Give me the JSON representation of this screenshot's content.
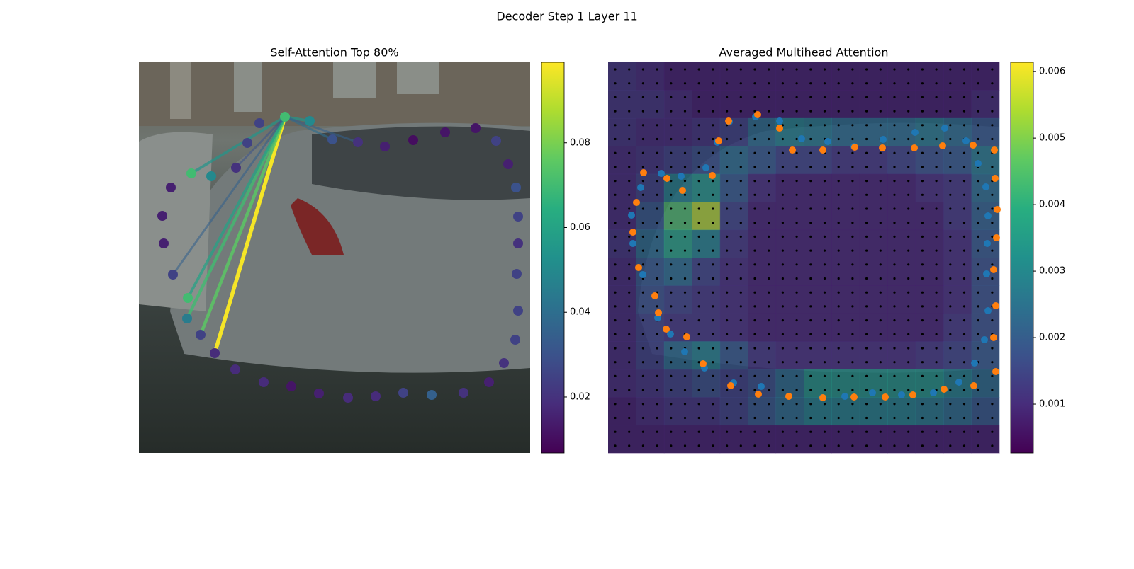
{
  "title": "Decoder Step 1 Layer 11",
  "chart_data": [
    {
      "type": "attention-graph",
      "title": "Self-Attention Top 80%",
      "xlim": [
        0,
        552
      ],
      "ylim": [
        552,
        0
      ],
      "x": [
        87,
        68,
        69,
        48,
        35,
        33,
        45,
        74,
        102,
        137,
        153,
        170,
        206,
        241,
        273,
        309,
        347,
        387,
        432,
        475,
        504,
        521,
        532,
        535,
        535,
        533,
        535,
        531,
        515,
        494,
        458,
        413,
        373,
        334,
        295,
        254,
        215,
        176,
        136,
        107
      ],
      "y": [
        167,
        190,
        219,
        252,
        296,
        335,
        375,
        395,
        391,
        403,
        438,
        466,
        475,
        469,
        443,
        439,
        433,
        442,
        453,
        459,
        441,
        408,
        375,
        334,
        296,
        253,
        201,
        160,
        127,
        100,
        85,
        82,
        85,
        80,
        78,
        84,
        94,
        100,
        118,
        141
      ],
      "values": [
        0.025,
        0.045,
        0.07,
        0.025,
        0.015,
        0.015,
        0.015,
        0.07,
        0.05,
        0.02,
        0.025,
        0.025,
        0.07,
        0.05,
        0.03,
        0.02,
        0.015,
        0.01,
        0.012,
        0.012,
        0.025,
        0.015,
        0.03,
        0.025,
        0.02,
        0.025,
        0.025,
        0.025,
        0.02,
        0.015,
        0.02,
        0.035,
        0.025,
        0.018,
        0.018,
        0.015,
        0.012,
        0.018,
        0.018,
        0.018
      ],
      "source": 12,
      "edges": {
        "targets": [
          39,
          0,
          1,
          2,
          3,
          7,
          13,
          14,
          15,
          9
        ],
        "values": [
          0.098,
          0.075,
          0.07,
          0.06,
          0.035,
          0.055,
          0.055,
          0.04,
          0.035,
          0.03
        ]
      },
      "clim": [
        0.0068,
        0.099
      ],
      "cticks": [
        0.02,
        0.04,
        0.06,
        0.08
      ]
    },
    {
      "type": "heatmap",
      "title": "Averaged Multihead Attention",
      "xlim": [
        0,
        552
      ],
      "ylim": [
        552,
        0
      ],
      "values": [
        [
          0.0012,
          0.001,
          0.0008,
          0.0008,
          0.0008,
          0.0008,
          0.0008,
          0.0008,
          0.0008,
          0.0008,
          0.0008,
          0.0008,
          0.0008,
          0.0008
        ],
        [
          0.0012,
          0.0012,
          0.001,
          0.0008,
          0.0008,
          0.0008,
          0.0008,
          0.0008,
          0.0008,
          0.0008,
          0.0008,
          0.0008,
          0.0008,
          0.001
        ],
        [
          0.0012,
          0.001,
          0.001,
          0.0012,
          0.0015,
          0.0025,
          0.003,
          0.0028,
          0.0025,
          0.0025,
          0.0025,
          0.0028,
          0.0025,
          0.002
        ],
        [
          0.001,
          0.0012,
          0.0015,
          0.0018,
          0.0025,
          0.002,
          0.0015,
          0.0015,
          0.0012,
          0.0012,
          0.0015,
          0.0018,
          0.002,
          0.0028
        ],
        [
          0.001,
          0.0015,
          0.003,
          0.0035,
          0.002,
          0.001,
          0.0008,
          0.0008,
          0.0008,
          0.0008,
          0.0008,
          0.001,
          0.0012,
          0.0025
        ],
        [
          0.001,
          0.002,
          0.0045,
          0.0055,
          0.0015,
          0.0008,
          0.0008,
          0.0008,
          0.0008,
          0.0008,
          0.0008,
          0.0008,
          0.0012,
          0.0022
        ],
        [
          0.0012,
          0.0025,
          0.0038,
          0.003,
          0.0012,
          0.0008,
          0.0008,
          0.0008,
          0.0008,
          0.0008,
          0.0008,
          0.0008,
          0.001,
          0.002
        ],
        [
          0.001,
          0.002,
          0.0025,
          0.0015,
          0.001,
          0.0008,
          0.0008,
          0.0008,
          0.0008,
          0.0008,
          0.0008,
          0.0008,
          0.001,
          0.0018
        ],
        [
          0.001,
          0.0018,
          0.0015,
          0.0012,
          0.001,
          0.0008,
          0.0008,
          0.0008,
          0.0008,
          0.0008,
          0.0008,
          0.0008,
          0.001,
          0.0018
        ],
        [
          0.001,
          0.0015,
          0.0012,
          0.0012,
          0.001,
          0.0008,
          0.0008,
          0.0008,
          0.0008,
          0.0008,
          0.0008,
          0.0008,
          0.0012,
          0.0018
        ],
        [
          0.001,
          0.0015,
          0.0025,
          0.003,
          0.002,
          0.0012,
          0.001,
          0.001,
          0.001,
          0.001,
          0.001,
          0.0012,
          0.0015,
          0.002
        ],
        [
          0.001,
          0.0012,
          0.0015,
          0.0018,
          0.0015,
          0.0018,
          0.0025,
          0.0035,
          0.0035,
          0.0035,
          0.0035,
          0.0035,
          0.003,
          0.0025
        ],
        [
          0.0008,
          0.001,
          0.0012,
          0.0012,
          0.0015,
          0.002,
          0.0025,
          0.003,
          0.003,
          0.003,
          0.003,
          0.0028,
          0.0025,
          0.002
        ],
        [
          0.0008,
          0.0008,
          0.0008,
          0.0008,
          0.0008,
          0.0008,
          0.0008,
          0.0008,
          0.0008,
          0.0008,
          0.0008,
          0.0008,
          0.0008,
          0.0008
        ]
      ],
      "clim": [
        0.000266,
        0.00614
      ],
      "cticks": [
        0.001,
        0.002,
        0.003,
        0.004,
        0.005,
        0.006
      ],
      "point_sets": [
        {
          "color": "#1f77b4",
          "x": [
            177,
            216,
            136,
            108,
            88,
            70,
            49,
            35,
            33,
            46,
            75,
            103,
            138,
            154,
            171,
            208,
            242,
            273,
            310,
            347,
            388,
            433,
            475,
            505,
            522,
            533,
            536,
            535,
            534,
            536,
            531,
            517,
            495,
            459,
            414,
            373,
            334,
            302,
            255
          ],
          "y": [
            99,
            94,
            120,
            143,
            168,
            191,
            252,
            296,
            336,
            375,
            395,
            391,
            403,
            439,
            468,
            475,
            469,
            444,
            440,
            433,
            443,
            453,
            459,
            441,
            409,
            376,
            335,
            296,
            253,
            201,
            160,
            127,
            100,
            85,
            82,
            85,
            80,
            78,
            80
          ]
        },
        {
          "color": "#ff7f0e",
          "x": [
            173,
            212,
            255,
            303,
            347,
            391,
            430,
            474,
            516,
            547,
            544,
            547,
            544,
            548,
            549,
            546,
            545,
            515,
            472,
            432,
            387,
            348,
            303,
            260,
            242,
            211,
            170,
            156,
            147,
            105,
            83,
            50,
            40,
            35,
            43,
            66,
            71,
            82,
            111,
            134
          ],
          "y": [
            95,
            83,
            80,
            78,
            79,
            79,
            82,
            90,
            95,
            115,
            163,
            208,
            259,
            304,
            344,
            388,
            428,
            435,
            434,
            431,
            431,
            432,
            428,
            428,
            459,
            478,
            469,
            441,
            392,
            371,
            388,
            396,
            354,
            312,
            262,
            222,
            198,
            175,
            164,
            126
          ]
        }
      ]
    }
  ]
}
